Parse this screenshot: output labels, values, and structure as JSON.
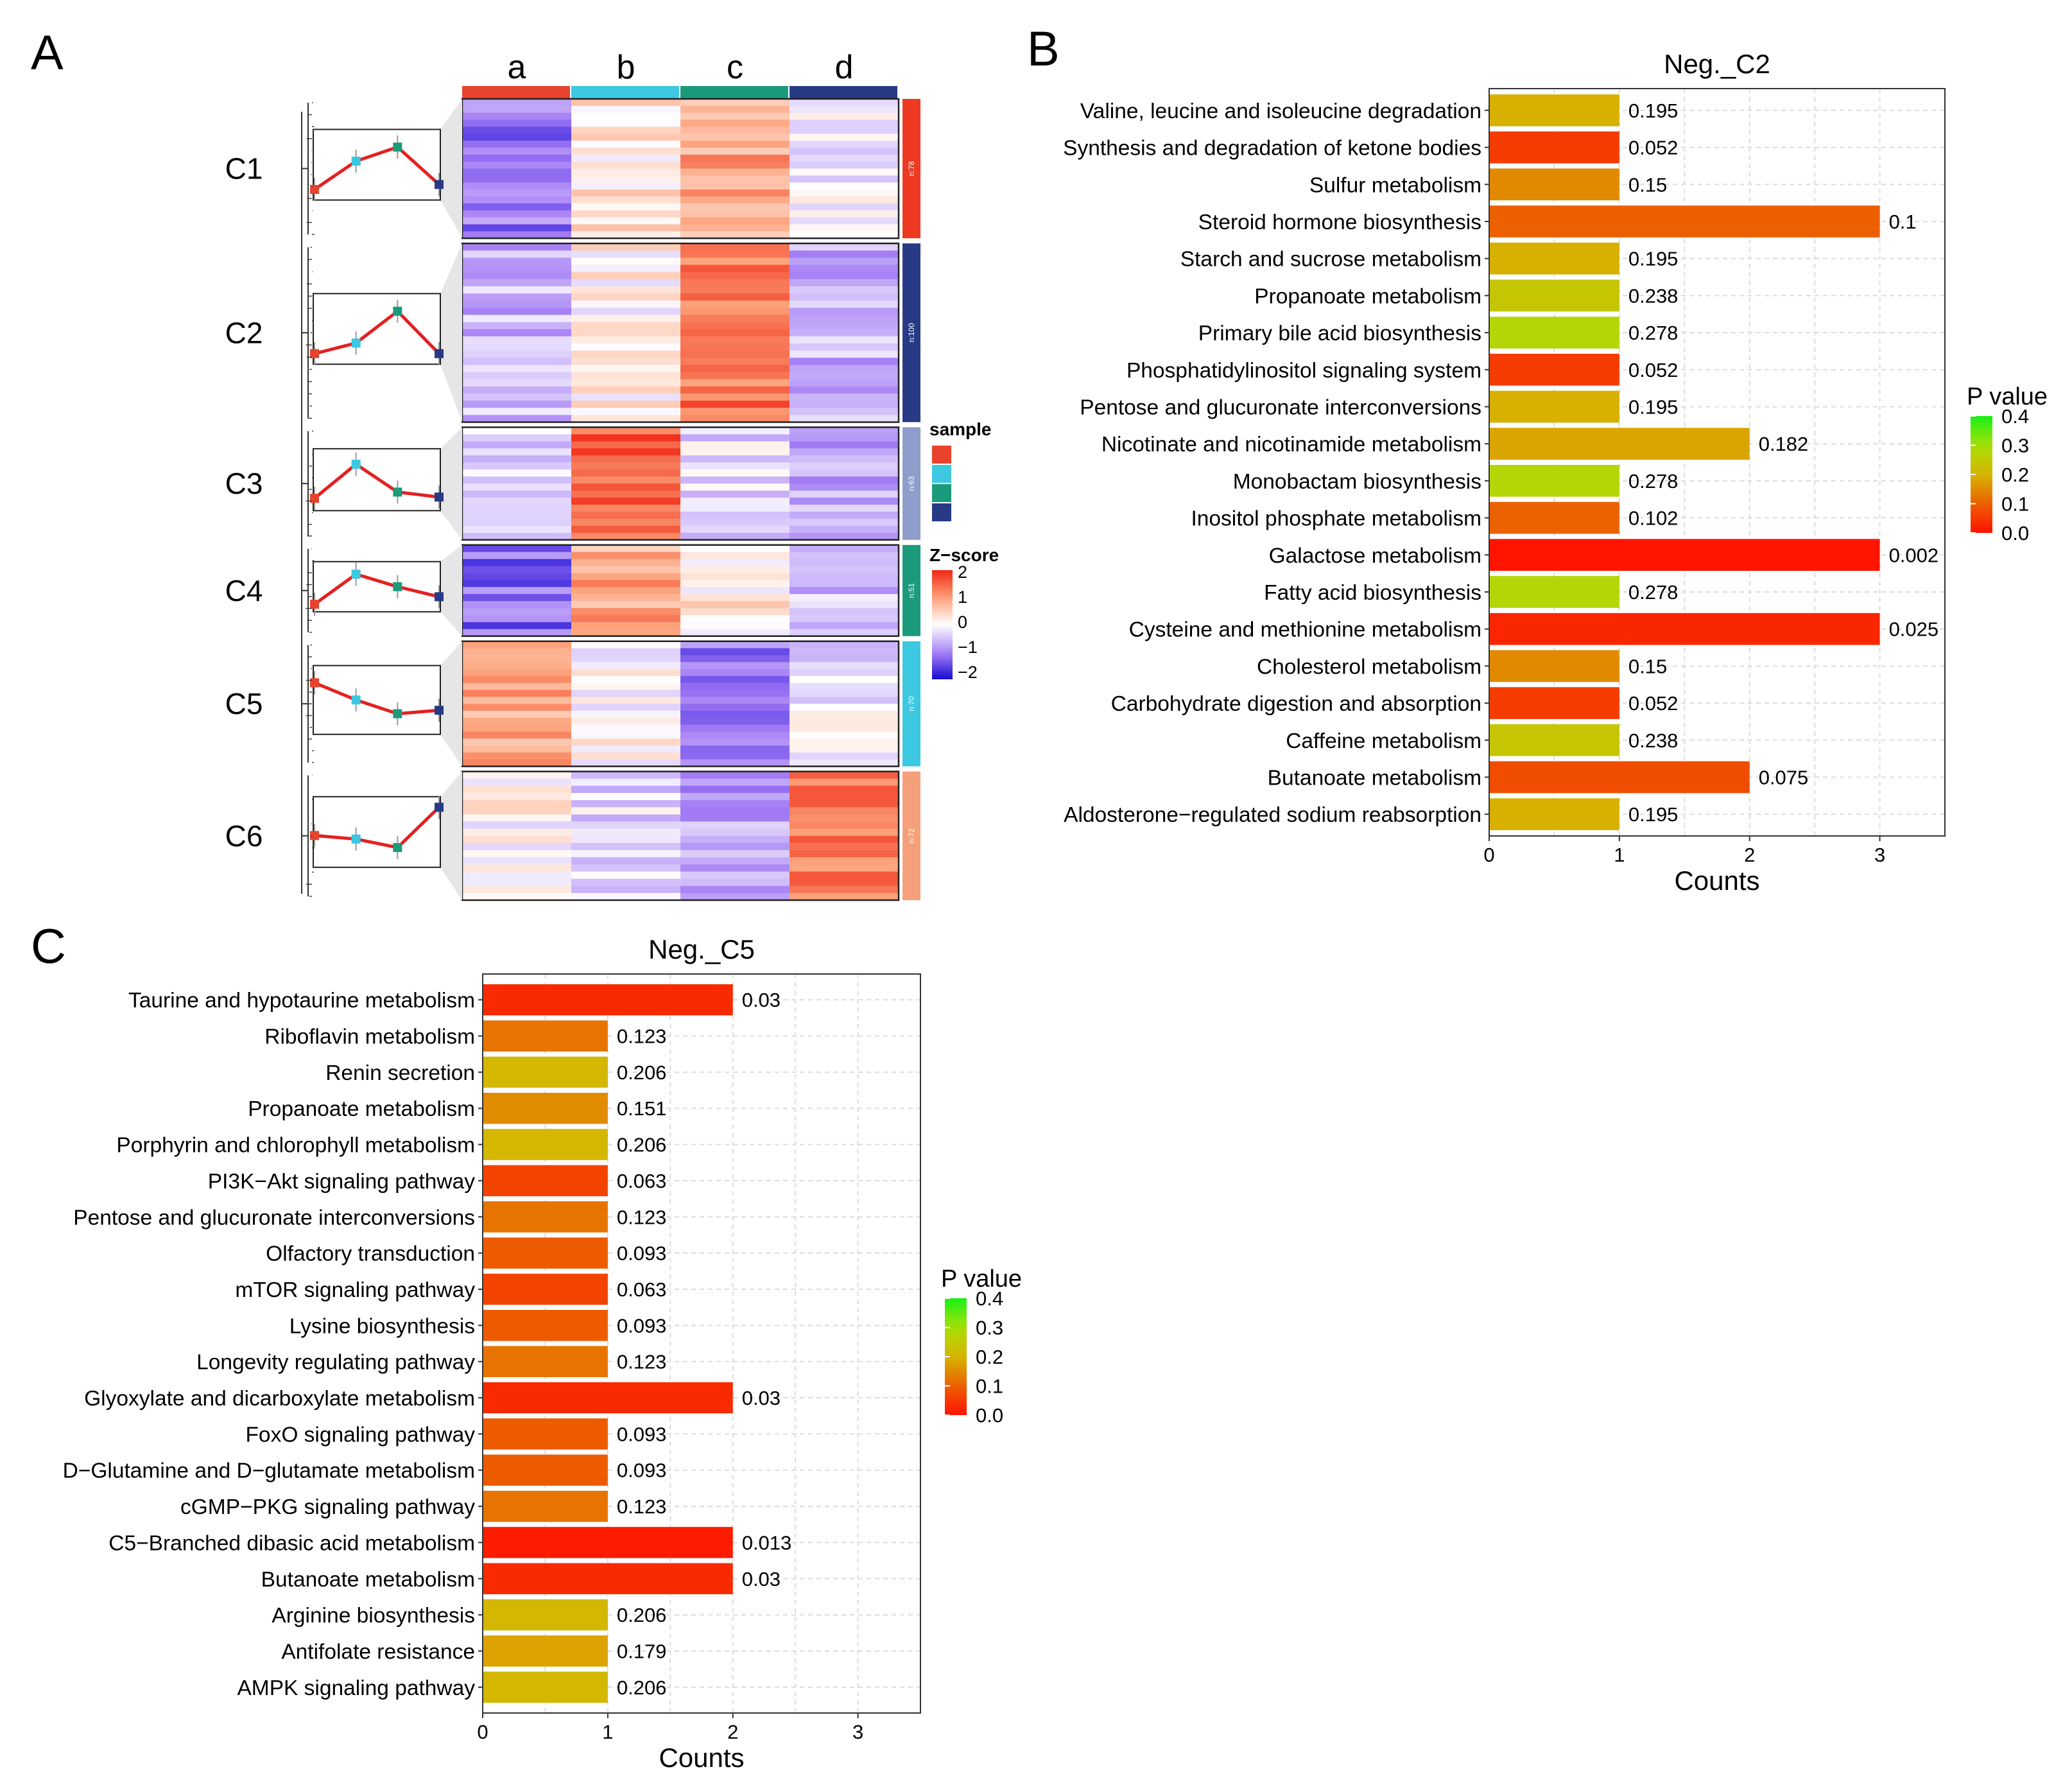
{
  "panel_labels": {
    "a": "A",
    "b": "B",
    "c": "C"
  },
  "colors": {
    "sample_a": "#E8432D",
    "sample_b": "#3CC8E0",
    "sample_c": "#1B9B7B",
    "sample_d": "#283A86",
    "cluster_C1": "#EE3A23",
    "cluster_C2": "#283A86",
    "cluster_C3": "#8E9DC9",
    "cluster_C4": "#1B9B7B",
    "cluster_C5": "#3CC8E0",
    "cluster_C6": "#F5A07A",
    "trend_line": "#E42020",
    "grid": "#dcdcdc"
  },
  "heatmap": {
    "columns": [
      "a",
      "b",
      "c",
      "d"
    ],
    "legend_sample_title": "sample",
    "legend_z_title": "Z−score",
    "z_ticks": [
      "2",
      "1",
      "0",
      "−1",
      "−2"
    ],
    "clusters": [
      {
        "id": "C1",
        "n_label": "n:78",
        "n": 78,
        "pattern": [
          -1.1,
          0.25,
          0.9,
          -0.2
        ],
        "trend": [
          0.15,
          0.55,
          0.75,
          0.22
        ]
      },
      {
        "id": "C2",
        "n_label": "n:100",
        "n": 100,
        "pattern": [
          -0.6,
          0.1,
          1.4,
          -0.6
        ],
        "trend": [
          0.15,
          0.3,
          0.75,
          0.15
        ]
      },
      {
        "id": "C3",
        "n_label": "n:63",
        "n": 63,
        "pattern": [
          -0.4,
          1.6,
          -0.3,
          -0.7
        ],
        "trend": [
          0.2,
          0.75,
          0.3,
          0.22
        ]
      },
      {
        "id": "C4",
        "n_label": "n:51",
        "n": 51,
        "pattern": [
          -1.2,
          0.9,
          0.2,
          -0.5
        ],
        "trend": [
          0.15,
          0.75,
          0.5,
          0.3
        ]
      },
      {
        "id": "C5",
        "n_label": "n:70",
        "n": 70,
        "pattern": [
          1.0,
          0.05,
          -1.1,
          -0.2
        ],
        "trend": [
          0.75,
          0.5,
          0.3,
          0.35
        ]
      },
      {
        "id": "C6",
        "n_label": "n:72",
        "n": 72,
        "pattern": [
          0.05,
          -0.3,
          -0.8,
          1.2
        ],
        "trend": [
          0.45,
          0.4,
          0.28,
          0.85
        ]
      }
    ]
  },
  "chart_data": [
    {
      "type": "bar",
      "orientation": "horizontal",
      "title": "Neg._C2",
      "xlabel": "Counts",
      "ylabel": "",
      "xlim": [
        0,
        3.5
      ],
      "xticks": [
        0,
        1,
        2,
        3
      ],
      "legend_title": "P value",
      "legend_ticks": [
        "0.4",
        "0.3",
        "0.2",
        "0.1",
        "0.0"
      ],
      "color_range": [
        0,
        0.4
      ],
      "categories": [
        "Valine, leucine and isoleucine degradation",
        "Synthesis and degradation of ketone bodies",
        "Sulfur metabolism",
        "Steroid hormone biosynthesis",
        "Starch and sucrose metabolism",
        "Propanoate metabolism",
        "Primary bile acid biosynthesis",
        "Phosphatidylinositol signaling system",
        "Pentose and glucuronate interconversions",
        "Nicotinate and nicotinamide metabolism",
        "Monobactam biosynthesis",
        "Inositol phosphate metabolism",
        "Galactose metabolism",
        "Fatty acid biosynthesis",
        "Cysteine and methionine metabolism",
        "Cholesterol metabolism",
        "Carbohydrate digestion and absorption",
        "Caffeine metabolism",
        "Butanoate metabolism",
        "Aldosterone−regulated sodium reabsorption"
      ],
      "values": [
        1,
        1,
        1,
        3,
        1,
        1,
        1,
        1,
        1,
        2,
        1,
        1,
        3,
        1,
        3,
        1,
        1,
        1,
        2,
        1
      ],
      "pvalues": [
        0.195,
        0.052,
        0.15,
        0.1,
        0.195,
        0.238,
        0.278,
        0.052,
        0.195,
        0.182,
        0.278,
        0.102,
        0.002,
        0.278,
        0.025,
        0.15,
        0.052,
        0.238,
        0.075,
        0.195
      ],
      "labels": [
        "0.195",
        "0.052",
        "0.15",
        "0.1",
        "0.195",
        "0.238",
        "0.278",
        "0.052",
        "0.195",
        "0.182",
        "0.278",
        "0.102",
        "0.002",
        "0.278",
        "0.025",
        "0.15",
        "0.052",
        "0.238",
        "0.075",
        "0.195"
      ]
    },
    {
      "type": "bar",
      "orientation": "horizontal",
      "title": "Neg._C5",
      "xlabel": "Counts",
      "ylabel": "",
      "xlim": [
        0,
        3.5
      ],
      "xticks": [
        0,
        1,
        2,
        3
      ],
      "legend_title": "P value",
      "legend_ticks": [
        "0.4",
        "0.3",
        "0.2",
        "0.1",
        "0.0"
      ],
      "color_range": [
        0,
        0.4
      ],
      "categories": [
        "Taurine and hypotaurine metabolism",
        "Riboflavin metabolism",
        "Renin secretion",
        "Propanoate metabolism",
        "Porphyrin and chlorophyll metabolism",
        "PI3K−Akt signaling pathway",
        "Pentose and glucuronate interconversions",
        "Olfactory transduction",
        "mTOR signaling pathway",
        "Lysine biosynthesis",
        "Longevity regulating pathway",
        "Glyoxylate and dicarboxylate metabolism",
        "FoxO signaling pathway",
        "D−Glutamine and D−glutamate metabolism",
        "cGMP−PKG signaling pathway",
        "C5−Branched dibasic acid metabolism",
        "Butanoate metabolism",
        "Arginine biosynthesis",
        "Antifolate resistance",
        "AMPK signaling pathway"
      ],
      "values": [
        2,
        1,
        1,
        1,
        1,
        1,
        1,
        1,
        1,
        1,
        1,
        2,
        1,
        1,
        1,
        2,
        2,
        1,
        1,
        1
      ],
      "pvalues": [
        0.03,
        0.123,
        0.206,
        0.151,
        0.206,
        0.063,
        0.123,
        0.093,
        0.063,
        0.093,
        0.123,
        0.03,
        0.093,
        0.093,
        0.123,
        0.013,
        0.03,
        0.206,
        0.179,
        0.206
      ],
      "labels": [
        "0.03",
        "0.123",
        "0.206",
        "0.151",
        "0.206",
        "0.063",
        "0.123",
        "0.093",
        "0.063",
        "0.093",
        "0.123",
        "0.03",
        "0.093",
        "0.093",
        "0.123",
        "0.013",
        "0.03",
        "0.206",
        "0.179",
        "0.206"
      ]
    }
  ]
}
